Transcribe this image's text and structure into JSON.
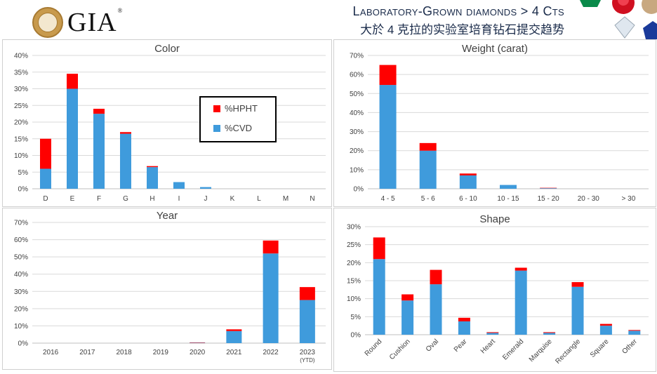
{
  "header": {
    "logo_text": "GIA",
    "logo_mark": "®",
    "title_line1": "Laboratory-Grown diamonds > 4 Cts",
    "title_line2": "大於 4 克拉的实验室培育钻石提交趋势"
  },
  "colors": {
    "hpht": "#ff0000",
    "cvd": "#3f9bdc"
  },
  "legend": {
    "hpht": "%HPHT",
    "cvd": "%CVD"
  },
  "chart_data": [
    {
      "type": "bar",
      "stacked": true,
      "title": "Color",
      "categories": [
        "D",
        "E",
        "F",
        "G",
        "H",
        "I",
        "J",
        "K",
        "L",
        "M",
        "N"
      ],
      "series": [
        {
          "name": "%CVD",
          "values": [
            6,
            30,
            22.5,
            16.5,
            6.5,
            2,
            0.5,
            0,
            0,
            0,
            0
          ]
        },
        {
          "name": "%HPHT",
          "values": [
            9,
            4.5,
            1.5,
            0.5,
            0.3,
            0,
            0,
            0,
            0,
            0,
            0
          ]
        }
      ],
      "ylim": [
        0,
        40
      ],
      "yticks": [
        "0%",
        "5%",
        "10%",
        "15%",
        "20%",
        "25%",
        "30%",
        "35%",
        "40%"
      ],
      "grid": true,
      "legend_position": "inside-right"
    },
    {
      "type": "bar",
      "stacked": true,
      "title": "Weight (carat)",
      "categories": [
        "4 - 5",
        "5 - 6",
        "6 - 10",
        "10 - 15",
        "15 - 20",
        "20 - 30",
        "> 30"
      ],
      "series": [
        {
          "name": "%CVD",
          "values": [
            54.5,
            20,
            7,
            2,
            0.3,
            0,
            0
          ]
        },
        {
          "name": "%HPHT",
          "values": [
            10.5,
            4,
            1,
            0,
            0.2,
            0,
            0
          ]
        }
      ],
      "ylim": [
        0,
        70
      ],
      "yticks": [
        "0%",
        "10%",
        "20%",
        "30%",
        "40%",
        "50%",
        "60%",
        "70%"
      ],
      "grid": true
    },
    {
      "type": "bar",
      "stacked": true,
      "title": "Year",
      "categories": [
        "2016",
        "2017",
        "2018",
        "2019",
        "2020",
        "2021",
        "2022",
        "2023"
      ],
      "category_sublabels": [
        "",
        "",
        "",
        "",
        "",
        "",
        "",
        "(YTD)"
      ],
      "series": [
        {
          "name": "%CVD",
          "values": [
            0,
            0,
            0,
            0,
            0.2,
            7,
            52,
            25
          ]
        },
        {
          "name": "%HPHT",
          "values": [
            0,
            0,
            0,
            0,
            0.2,
            1,
            7.5,
            7.5
          ]
        }
      ],
      "ylim": [
        0,
        70
      ],
      "yticks": [
        "0%",
        "10%",
        "20%",
        "30%",
        "40%",
        "50%",
        "60%",
        "70%"
      ],
      "grid": true
    },
    {
      "type": "bar",
      "stacked": true,
      "title": "Shape",
      "categories": [
        "Round",
        "Cushion",
        "Oval",
        "Pear",
        "Heart",
        "Emerald",
        "Marquise",
        "Rectangle",
        "Square",
        "Other"
      ],
      "series": [
        {
          "name": "%CVD",
          "values": [
            21,
            9.5,
            14,
            3.7,
            0.5,
            17.8,
            0.5,
            13.3,
            2.5,
            1.1
          ]
        },
        {
          "name": "%HPHT",
          "values": [
            6,
            1.7,
            4,
            1,
            0.2,
            0.8,
            0.2,
            1.3,
            0.5,
            0.2
          ]
        }
      ],
      "ylim": [
        0,
        30
      ],
      "yticks": [
        "0%",
        "5%",
        "10%",
        "15%",
        "20%",
        "25%",
        "30%"
      ],
      "grid": true,
      "xtick_rotation": -45
    }
  ]
}
